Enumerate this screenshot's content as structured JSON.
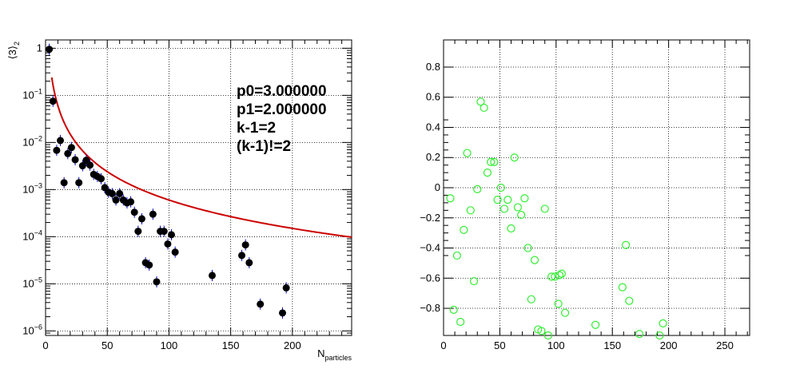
{
  "chart_data": [
    {
      "type": "scatter",
      "ylog": true,
      "xlim": [
        0,
        248
      ],
      "ylim": [
        8e-07,
        1.5
      ],
      "grid": true,
      "xlabel": "N",
      "xlabel_sub": "particles",
      "ylabel": "⟨3⟩",
      "ylabel_sub": "2",
      "x_ticks": [
        0,
        50,
        100,
        150,
        200
      ],
      "y_ticks": [
        {
          "value": 1,
          "base": "1",
          "exp": ""
        },
        {
          "value": 0.1,
          "base": "10",
          "exp": "−1"
        },
        {
          "value": 0.01,
          "base": "10",
          "exp": "−2"
        },
        {
          "value": 0.001,
          "base": "10",
          "exp": "−3"
        },
        {
          "value": 0.0001,
          "base": "10",
          "exp": "−4"
        },
        {
          "value": 1e-05,
          "base": "10",
          "exp": "−5"
        },
        {
          "value": 1e-06,
          "base": "10",
          "exp": "−6"
        }
      ],
      "annotations": [
        "p0=3.000000",
        "p1=2.000000",
        "k-1=2",
        "(k-1)!=2"
      ],
      "fit": {
        "name": "fit",
        "color": "#cc0000",
        "p0": 3,
        "p1": 2,
        "x_start": 5,
        "x_end": 248
      },
      "series": [
        {
          "name": "data",
          "color": "#000000",
          "points": [
            [
              3,
              0.95
            ],
            [
              6,
              0.075
            ],
            [
              9,
              0.0068
            ],
            [
              12,
              0.011
            ],
            [
              15,
              0.0014
            ],
            [
              18,
              0.0058
            ],
            [
              21,
              0.0078
            ],
            [
              24,
              0.0043
            ],
            [
              27,
              0.0014
            ],
            [
              30,
              0.0032
            ],
            [
              33,
              0.0042
            ],
            [
              36,
              0.0033
            ],
            [
              39,
              0.0021
            ],
            [
              42,
              0.0019
            ],
            [
              45,
              0.0017
            ],
            [
              48,
              0.0011
            ],
            [
              51,
              0.00088
            ],
            [
              54,
              0.00082
            ],
            [
              57,
              0.0006
            ],
            [
              60,
              0.00082
            ],
            [
              63,
              0.0006
            ],
            [
              66,
              0.00052
            ],
            [
              69,
              0.00055
            ],
            [
              72,
              0.00033
            ],
            [
              75,
              0.00013
            ],
            [
              78,
              0.00024
            ],
            [
              81,
              2.8e-05
            ],
            [
              84,
              2.5e-05
            ],
            [
              87,
              0.0003
            ],
            [
              90,
              1.1e-05
            ],
            [
              93,
              0.00013
            ],
            [
              96,
              0.00013
            ],
            [
              99,
              7e-05
            ],
            [
              102,
              0.00011
            ],
            [
              105,
              4.7e-05
            ],
            [
              135,
              1.5e-05
            ],
            [
              159,
              4e-05
            ],
            [
              162,
              6.7e-05
            ],
            [
              165,
              2.8e-05
            ],
            [
              174,
              3.7e-06
            ],
            [
              192,
              2.4e-06
            ],
            [
              195,
              8.2e-06
            ]
          ]
        }
      ]
    },
    {
      "type": "scatter",
      "xlim": [
        0,
        272
      ],
      "ylim": [
        -0.98,
        0.98
      ],
      "grid": true,
      "x_ticks": [
        0,
        50,
        100,
        150,
        200,
        250
      ],
      "y_ticks": [
        0.8,
        0.6,
        0.4,
        0.2,
        0,
        -0.2,
        -0.4,
        -0.6,
        -0.8
      ],
      "series": [
        {
          "name": "data",
          "color": "#33ee33",
          "points": [
            [
              6,
              -0.07
            ],
            [
              9,
              -0.81
            ],
            [
              12,
              -0.45
            ],
            [
              15,
              -0.89
            ],
            [
              18,
              -0.28
            ],
            [
              21,
              0.23
            ],
            [
              24,
              -0.15
            ],
            [
              27,
              -0.62
            ],
            [
              30,
              -0.01
            ],
            [
              33,
              0.57
            ],
            [
              36,
              0.53
            ],
            [
              39,
              0.1
            ],
            [
              42,
              0.17
            ],
            [
              45,
              0.17
            ],
            [
              48,
              -0.08
            ],
            [
              51,
              0.0
            ],
            [
              54,
              -0.14
            ],
            [
              57,
              -0.08
            ],
            [
              60,
              -0.27
            ],
            [
              63,
              0.2
            ],
            [
              66,
              -0.13
            ],
            [
              69,
              -0.18
            ],
            [
              72,
              -0.07
            ],
            [
              75,
              -0.4
            ],
            [
              78,
              -0.74
            ],
            [
              81,
              -0.48
            ],
            [
              84,
              -0.94
            ],
            [
              87,
              -0.95
            ],
            [
              90,
              -0.14
            ],
            [
              93,
              -0.98
            ],
            [
              96,
              -0.59
            ],
            [
              99,
              -0.59
            ],
            [
              102,
              -0.77
            ],
            [
              103,
              -0.58
            ],
            [
              105,
              -0.57
            ],
            [
              108,
              -0.83
            ],
            [
              135,
              -0.91
            ],
            [
              159,
              -0.66
            ],
            [
              162,
              -0.38
            ],
            [
              165,
              -0.75
            ],
            [
              174,
              -0.97
            ],
            [
              192,
              -0.98
            ],
            [
              195,
              -0.9
            ]
          ]
        }
      ]
    }
  ]
}
